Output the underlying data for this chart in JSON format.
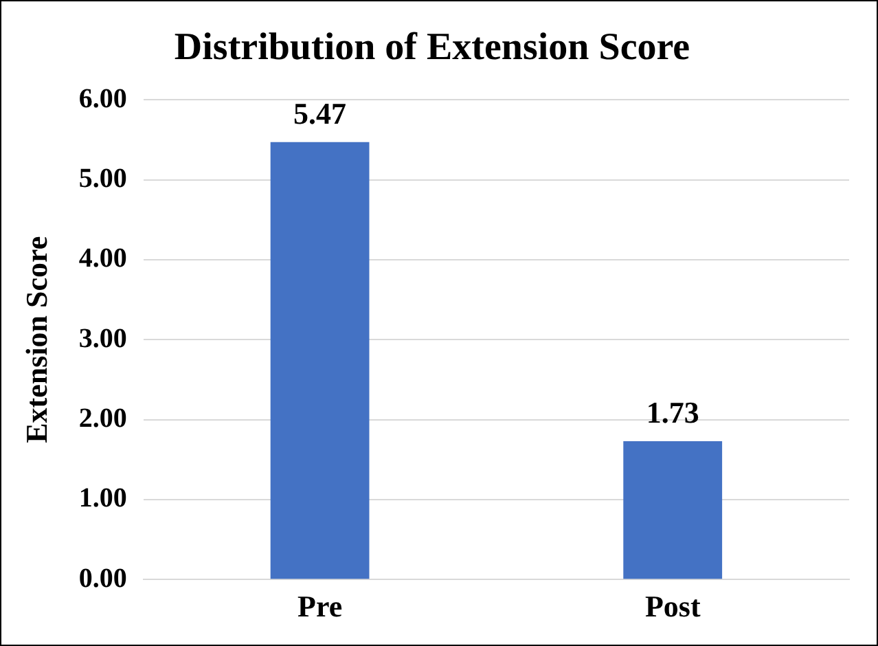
{
  "chart_data": {
    "type": "bar",
    "title": "Distribution of Extension Score",
    "ylabel": "Extension Score",
    "categories": [
      "Pre",
      "Post"
    ],
    "values": [
      5.47,
      1.73
    ],
    "color": "#4472c4",
    "ylim": [
      0,
      6
    ],
    "yticks": [
      {
        "value": 0,
        "label": "0.00"
      },
      {
        "value": 1,
        "label": "1.00"
      },
      {
        "value": 2,
        "label": "2.00"
      },
      {
        "value": 3,
        "label": "3.00"
      },
      {
        "value": 4,
        "label": "4.00"
      },
      {
        "value": 5,
        "label": "5.00"
      },
      {
        "value": 6,
        "label": "6.00"
      }
    ],
    "grid": "y",
    "data_labels": true,
    "legend": false
  }
}
